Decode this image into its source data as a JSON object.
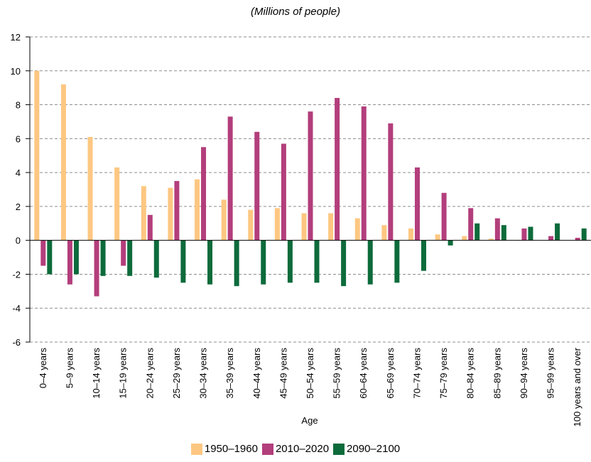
{
  "chart_data": {
    "type": "bar",
    "subtitle": "(Millions of people)",
    "xlabel": "Age",
    "ylabel": "",
    "ylim": [
      -6,
      12
    ],
    "yticks": [
      "-6",
      "-4",
      "-2",
      "0",
      "2",
      "4",
      "6",
      "8",
      "10",
      "12"
    ],
    "grid": true,
    "legend_position": "bottom",
    "categories": [
      "0–4 years",
      "5–9 years",
      "10–14 years",
      "15–19 years",
      "20–24 years",
      "25–29 years",
      "30–34 years",
      "35–39 years",
      "40–44 years",
      "45–49 years",
      "50–54 years",
      "55–59 years",
      "60–64 years",
      "65–69 years",
      "70–74 years",
      "75–79 years",
      "80–84 years",
      "85–89 years",
      "90–94 years",
      "95–99 years",
      "100 years and over"
    ],
    "series": [
      {
        "name": "1950–1960",
        "color": "#fdc782",
        "values": [
          10.0,
          9.2,
          6.1,
          4.3,
          3.2,
          3.1,
          3.6,
          2.4,
          1.8,
          1.9,
          1.6,
          1.6,
          1.3,
          0.9,
          0.7,
          0.35,
          0.25,
          0.1,
          0.03,
          0.0,
          0.0
        ]
      },
      {
        "name": "2010–2020",
        "color": "#b33e7c",
        "values": [
          -1.5,
          -2.6,
          -3.3,
          -1.5,
          1.5,
          3.5,
          5.5,
          7.3,
          6.4,
          5.7,
          7.6,
          8.4,
          7.9,
          6.9,
          4.3,
          2.8,
          1.9,
          1.3,
          0.7,
          0.25,
          0.15
        ]
      },
      {
        "name": "2090–2100",
        "color": "#0d6b3b",
        "values": [
          -2.0,
          -2.0,
          -2.1,
          -2.1,
          -2.2,
          -2.5,
          -2.6,
          -2.7,
          -2.6,
          -2.5,
          -2.5,
          -2.7,
          -2.6,
          -2.5,
          -1.8,
          -0.3,
          1.0,
          0.9,
          0.8,
          1.0,
          0.7
        ]
      }
    ]
  }
}
